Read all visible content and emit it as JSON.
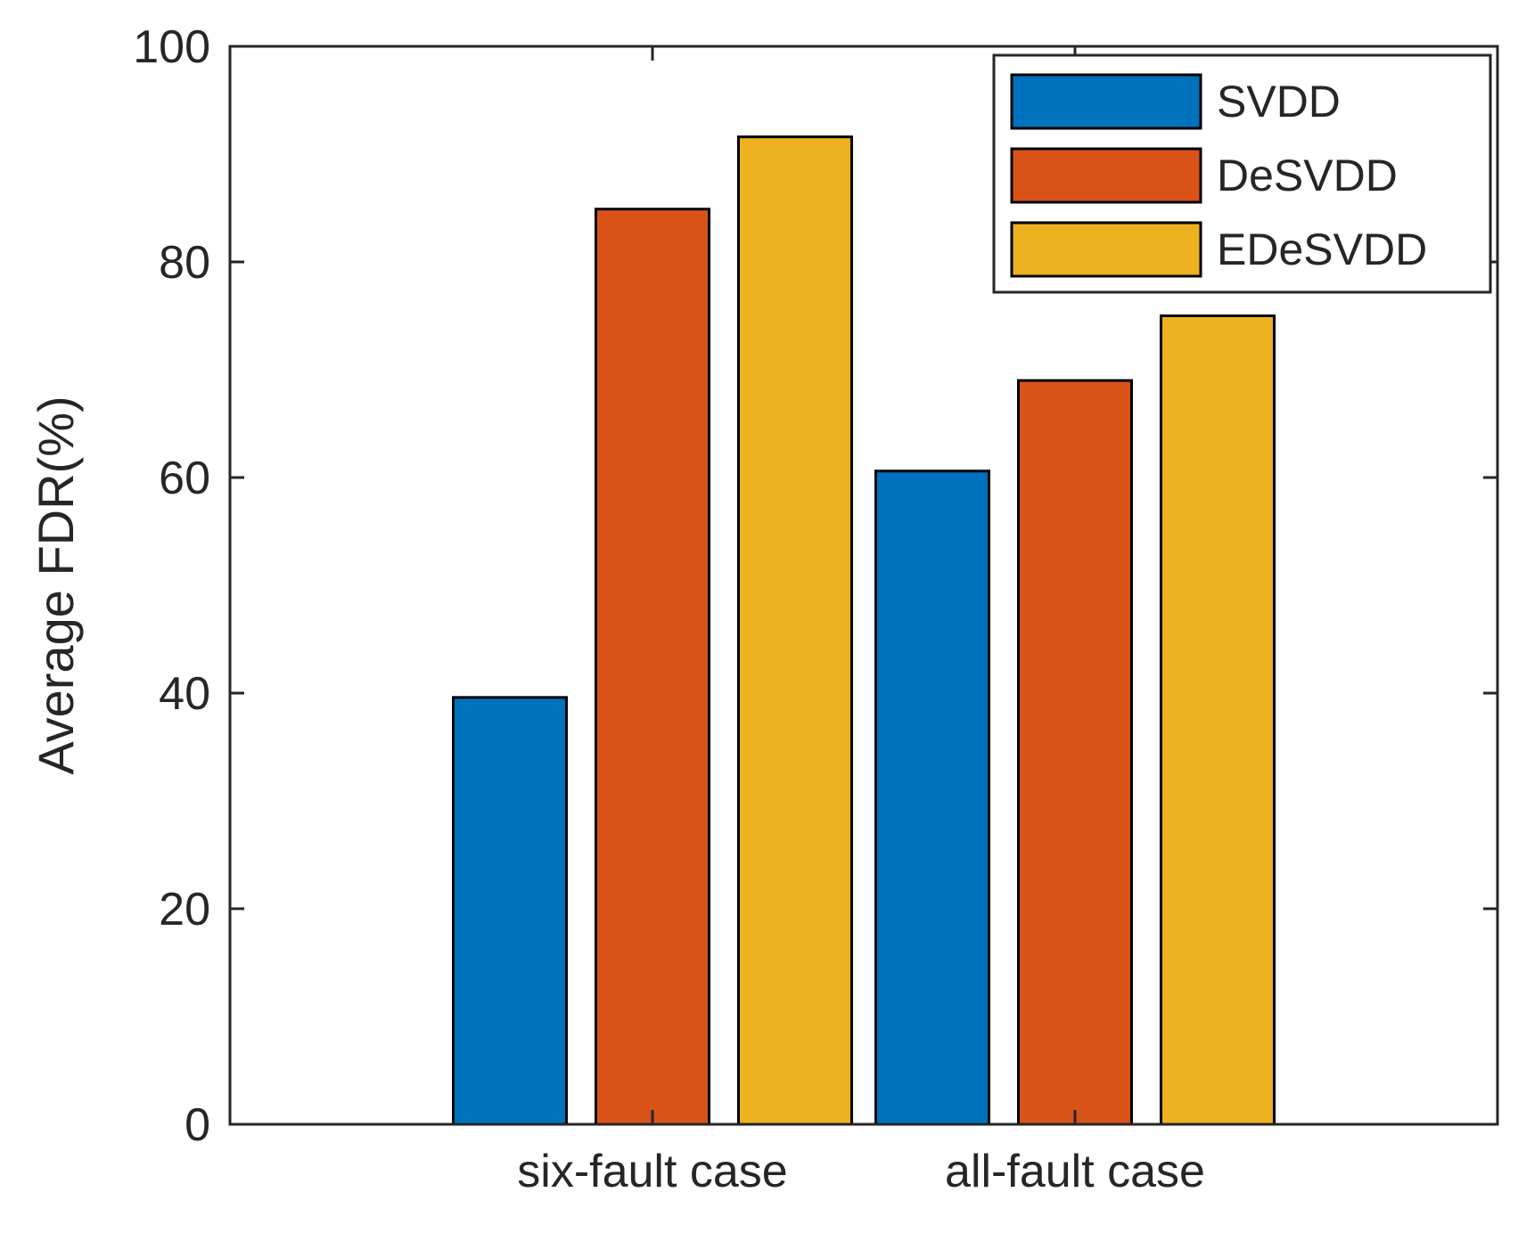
{
  "chart_data": {
    "type": "bar",
    "title": "",
    "xlabel": "",
    "ylabel": "Average FDR(%)",
    "categories": [
      "six-fault case",
      "all-fault case"
    ],
    "ylim": [
      0,
      100
    ],
    "yticks": [
      0,
      20,
      40,
      60,
      80,
      100
    ],
    "grid": false,
    "legend_position": "top-right",
    "series": [
      {
        "name": "SVDD",
        "color": "#0072BD",
        "values": [
          39.6,
          60.6
        ]
      },
      {
        "name": "DeSVDD",
        "color": "#D95319",
        "values": [
          84.9,
          69.0
        ]
      },
      {
        "name": "EDeSVDD",
        "color": "#EDB120",
        "values": [
          91.6,
          75.0
        ]
      }
    ]
  }
}
